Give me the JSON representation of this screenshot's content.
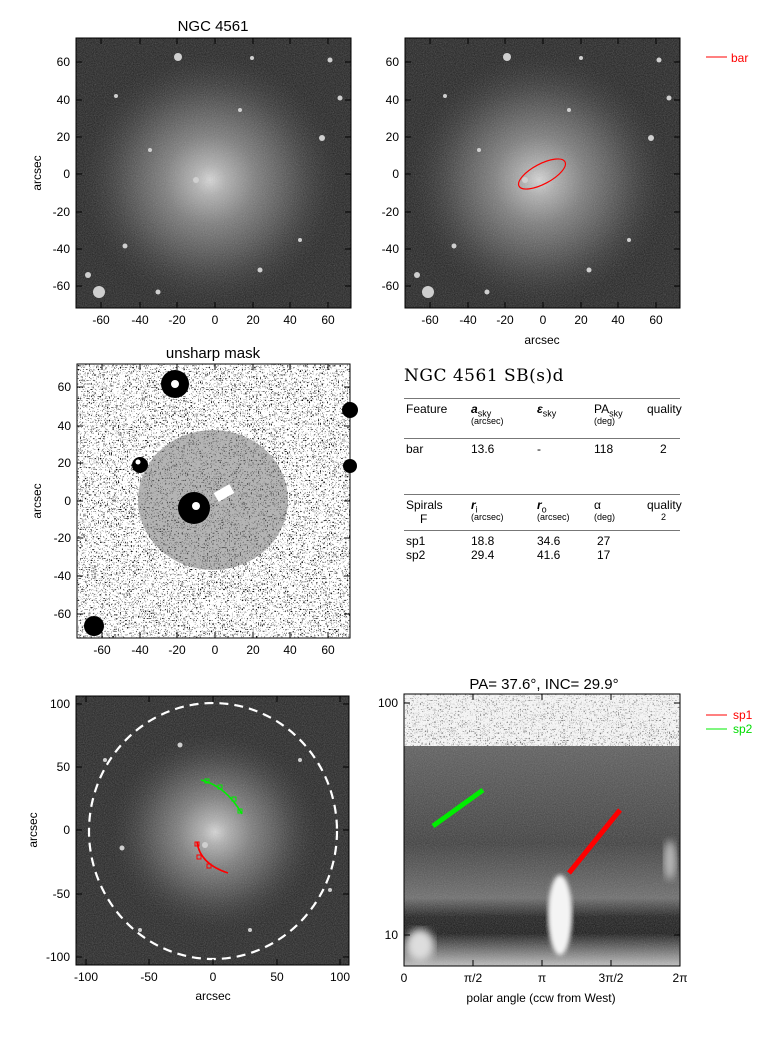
{
  "galaxy": "NGC 4561",
  "panels": {
    "image": {
      "title": "NGC 4561",
      "ylabel": "arcsec",
      "xticks": [
        "-60",
        "-40",
        "-20",
        "0",
        "20",
        "40",
        "60"
      ],
      "yticks": [
        "60",
        "40",
        "20",
        "0",
        "-20",
        "-40",
        "-60"
      ]
    },
    "bar_fit": {
      "xlabel": "arcsec",
      "xticks": [
        "-60",
        "-40",
        "-20",
        "0",
        "20",
        "40",
        "60"
      ],
      "yticks": [
        "60",
        "40",
        "20",
        "0",
        "-20",
        "-40",
        "-60"
      ],
      "legend": [
        {
          "label": "bar",
          "color": "#ff0000"
        }
      ]
    },
    "unsharp": {
      "title": "unsharp mask",
      "ylabel": "arcsec",
      "xticks": [
        "-60",
        "-40",
        "-20",
        "0",
        "20",
        "40",
        "60"
      ],
      "yticks": [
        "60",
        "40",
        "20",
        "0",
        "-20",
        "-40",
        "-60"
      ]
    },
    "deprojected": {
      "xlabel": "arcsec",
      "ylabel": "arcsec",
      "xticks": [
        "-100",
        "-50",
        "0",
        "50",
        "100"
      ],
      "yticks": [
        "100",
        "50",
        "0",
        "-50",
        "-100"
      ]
    },
    "polar": {
      "title": "PA=  37.6°, INC=  29.9°",
      "xlabel": "polar angle (ccw from West)",
      "xticks": [
        "0",
        "π/2",
        "π",
        "3π/2",
        "2π"
      ],
      "yticks": [
        "100",
        "10"
      ],
      "legend": [
        {
          "label": "sp1",
          "color": "#ff0000"
        },
        {
          "label": "sp2",
          "color": "#00ee00"
        }
      ]
    }
  },
  "table": {
    "heading": "NGC 4561  SB(s)d",
    "feature_header": {
      "c1": "Feature",
      "c2": "a",
      "c2_sub": "sky",
      "c2_unit": "(arcsec)",
      "c3": "ε",
      "c3_sub": "sky",
      "c4": "PA",
      "c4_sub": "sky",
      "c4_unit": "(deg)",
      "c5": "quality"
    },
    "features": [
      {
        "name": "bar",
        "a": "13.6",
        "eps": "-",
        "pa": "118",
        "quality": "2"
      }
    ],
    "spiral_header": {
      "c1": "Spirals",
      "c1_sub": "F",
      "c2": "r",
      "c2_sub": "i",
      "c2_unit": "(arcsec)",
      "c3": "r",
      "c3_sub": "o",
      "c3_unit": "(arcsec)",
      "c4": "α",
      "c4_unit": "(deg)",
      "c5": "quality",
      "c5_sub": "2"
    },
    "spirals": [
      {
        "name": "sp1",
        "ri": "18.8",
        "ro": "34.6",
        "alpha": "27"
      },
      {
        "name": "sp2",
        "ri": "29.4",
        "ro": "41.6",
        "alpha": "17"
      }
    ]
  },
  "colors": {
    "bar": "#ff0000",
    "sp1": "#ff0000",
    "sp2": "#00ee00"
  }
}
